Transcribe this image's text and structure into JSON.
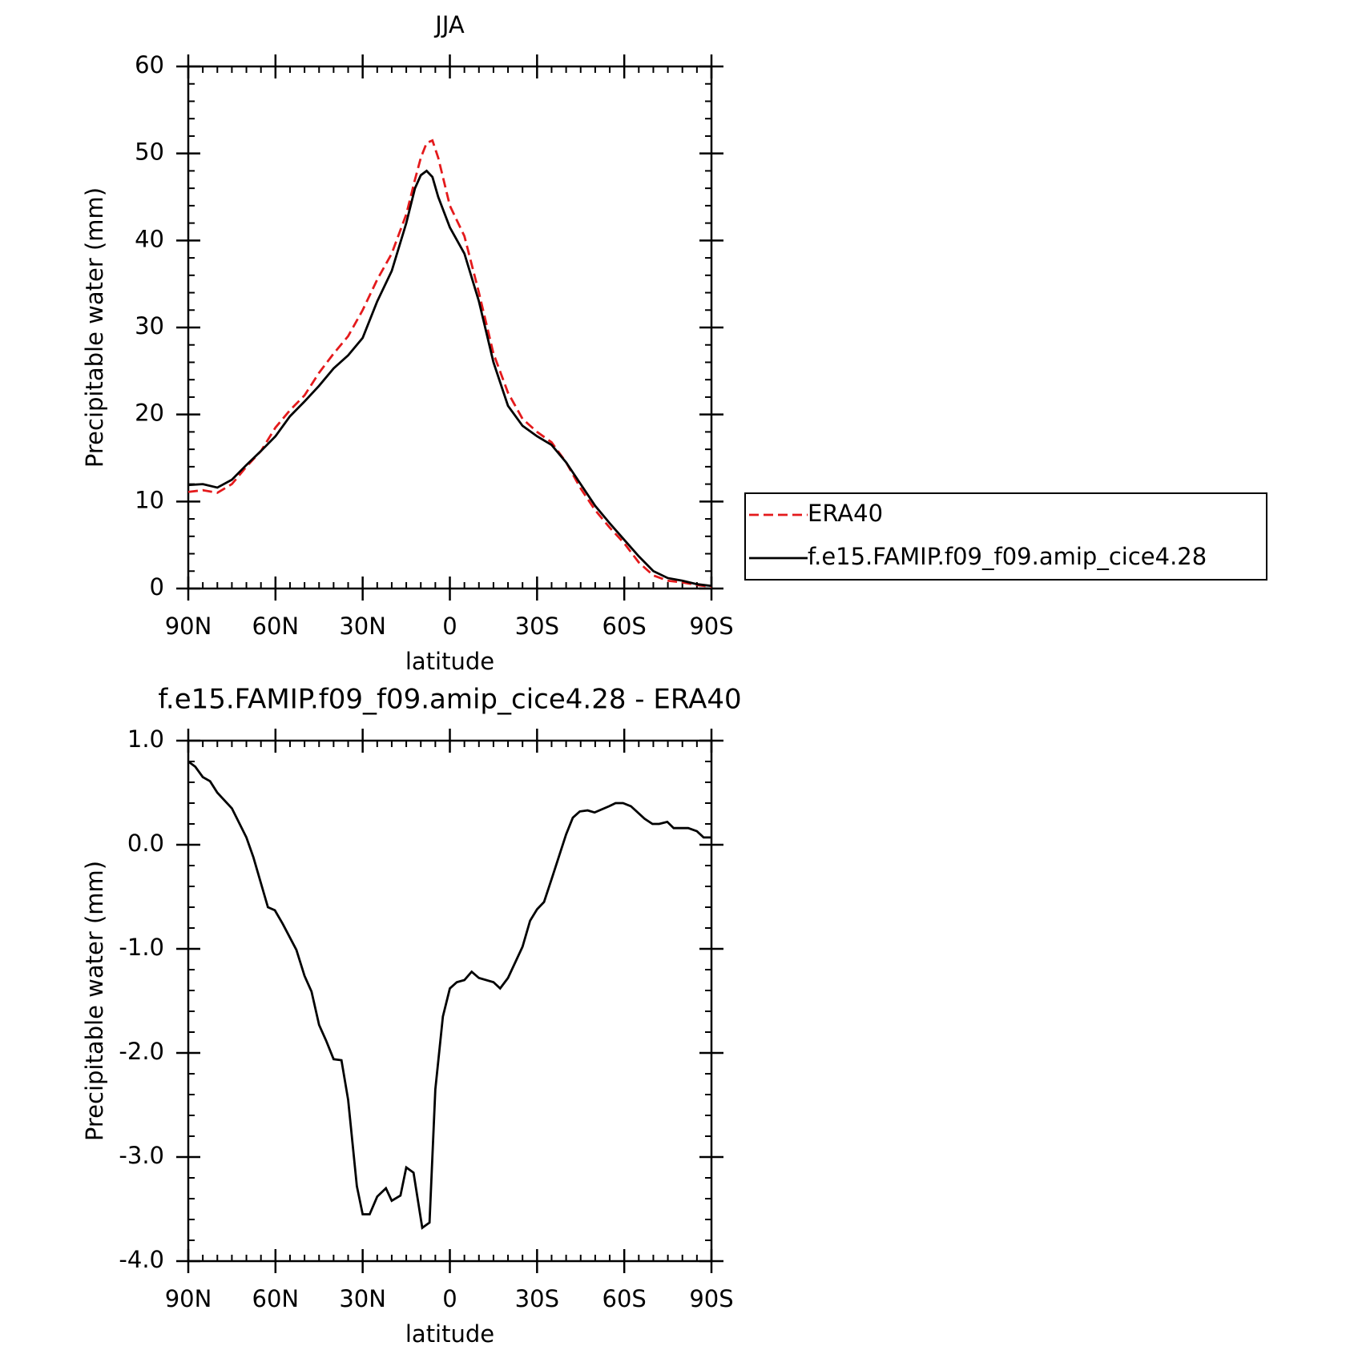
{
  "chart_data": [
    {
      "type": "line",
      "title": "JJA",
      "xlabel": "latitude",
      "ylabel": "Precipitable water (mm)",
      "xlim": [
        90,
        -90
      ],
      "ylim": [
        0,
        60
      ],
      "xticks": [
        {
          "value": 90,
          "label": "90N"
        },
        {
          "value": 60,
          "label": "60N"
        },
        {
          "value": 30,
          "label": "30N"
        },
        0,
        {
          "value": -30,
          "label": "30S"
        },
        {
          "value": -60,
          "label": "60S"
        },
        {
          "value": -90,
          "label": "90S"
        }
      ],
      "yticks": [
        0,
        10,
        20,
        30,
        40,
        50,
        60
      ],
      "legend": "right",
      "x": [
        90,
        85,
        80,
        75,
        70,
        65,
        60,
        55,
        50,
        45,
        40,
        35,
        30,
        25,
        20,
        15,
        12,
        10,
        8,
        6,
        4,
        0,
        -5,
        -10,
        -15,
        -20,
        -25,
        -30,
        -35,
        -40,
        -45,
        -50,
        -55,
        -60,
        -65,
        -70,
        -75,
        -80,
        -85,
        -90
      ],
      "series": [
        {
          "name": "ERA40",
          "color": "#e41a1c",
          "style": "dashed",
          "values": [
            11.1,
            11.3,
            11.0,
            12.0,
            14.0,
            15.8,
            18.5,
            20.5,
            22.2,
            24.8,
            27.0,
            29.0,
            32.0,
            35.5,
            38.5,
            43.0,
            47.0,
            49.5,
            51.2,
            51.5,
            49.5,
            44.0,
            40.5,
            34.0,
            27.0,
            22.5,
            19.5,
            18.0,
            16.8,
            14.5,
            11.5,
            9.0,
            7.0,
            5.2,
            3.0,
            1.5,
            0.9,
            0.7,
            0.4,
            0.2
          ]
        },
        {
          "name": "f.e15.FAMIP.f09_f09.amip_cice4.28",
          "color": "#000000",
          "style": "solid",
          "values": [
            11.9,
            12.0,
            11.6,
            12.5,
            14.2,
            15.8,
            17.5,
            19.8,
            21.5,
            23.3,
            25.3,
            26.8,
            28.8,
            33.0,
            36.5,
            42.0,
            46.0,
            47.5,
            48.0,
            47.3,
            45.0,
            41.5,
            38.5,
            33.0,
            26.0,
            21.0,
            18.7,
            17.5,
            16.5,
            14.5,
            12.0,
            9.5,
            7.5,
            5.6,
            3.7,
            2.0,
            1.2,
            0.9,
            0.5,
            0.3
          ]
        }
      ]
    },
    {
      "type": "line",
      "title": "f.e15.FAMIP.f09_f09.amip_cice4.28 - ERA40",
      "xlabel": "latitude",
      "ylabel": "Precipitable water (mm)",
      "xlim": [
        90,
        -90
      ],
      "ylim": [
        -4,
        1
      ],
      "xticks": [
        {
          "value": 90,
          "label": "90N"
        },
        {
          "value": 60,
          "label": "60N"
        },
        {
          "value": 30,
          "label": "30N"
        },
        0,
        {
          "value": -30,
          "label": "30S"
        },
        {
          "value": -60,
          "label": "60S"
        },
        {
          "value": -90,
          "label": "90S"
        }
      ],
      "yticks": [
        {
          "value": -4,
          "label": "-4.0"
        },
        {
          "value": -3,
          "label": "-3.0"
        },
        {
          "value": -2,
          "label": "-2.0"
        },
        {
          "value": -1,
          "label": "-1.0"
        },
        {
          "value": 0,
          "label": "0.0"
        },
        {
          "value": 1,
          "label": "1.0"
        }
      ],
      "x": [
        90,
        87.6,
        85,
        82.5,
        80,
        75,
        70,
        67.6,
        62.6,
        60.2,
        57.5,
        52.8,
        50,
        47.6,
        45,
        42.6,
        40,
        37.3,
        35,
        32,
        30,
        27.6,
        25,
        22,
        20,
        17,
        15,
        12.5,
        9.5,
        7,
        5,
        2.4,
        0,
        -2.4,
        -5,
        -7.5,
        -10,
        -15,
        -17.3,
        -20,
        -25,
        -27.6,
        -30,
        -32.4,
        -35,
        -40,
        -42.3,
        -44.7,
        -47.4,
        -49.8,
        -54.8,
        -57,
        -59.6,
        -62.3,
        -67,
        -69.7,
        -72,
        -74.8,
        -77,
        -82,
        -85,
        -87.3,
        -90
      ],
      "series": [
        {
          "name": "f.e15.FAMIP.f09_f09.amip_cice4.28 - ERA40",
          "color": "#000000",
          "style": "solid",
          "values": [
            0.8,
            0.75,
            0.65,
            0.61,
            0.5,
            0.35,
            0.07,
            -0.12,
            -0.6,
            -0.63,
            -0.76,
            -1.01,
            -1.26,
            -1.41,
            -1.73,
            -1.88,
            -2.06,
            -2.07,
            -2.45,
            -3.28,
            -3.55,
            -3.55,
            -3.38,
            -3.3,
            -3.42,
            -3.37,
            -3.1,
            -3.15,
            -3.68,
            -3.63,
            -2.35,
            -1.65,
            -1.38,
            -1.32,
            -1.3,
            -1.22,
            -1.28,
            -1.32,
            -1.38,
            -1.28,
            -0.98,
            -0.73,
            -0.62,
            -0.55,
            -0.33,
            0.1,
            0.26,
            0.32,
            0.33,
            0.31,
            0.37,
            0.4,
            0.4,
            0.37,
            0.25,
            0.2,
            0.2,
            0.22,
            0.16,
            0.16,
            0.13,
            0.07,
            0.07
          ]
        }
      ]
    }
  ]
}
